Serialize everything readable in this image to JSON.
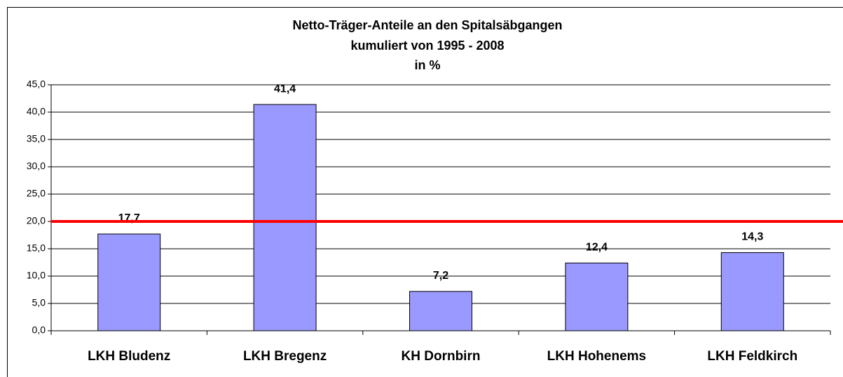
{
  "chart_data": {
    "type": "bar",
    "title": [
      "Netto-Träger-Anteile an den Spitalsäbgangen",
      "kumuliert von 1995 - 2008",
      "in %"
    ],
    "categories": [
      "LKH Bludenz",
      "LKH Bregenz",
      "KH Dornbirn",
      "LKH Hohenems",
      "LKH Feldkirch"
    ],
    "values": [
      17.7,
      41.4,
      7.2,
      12.4,
      14.3
    ],
    "value_labels": [
      "17,7",
      "41,4",
      "7,2",
      "12,4",
      "14,3"
    ],
    "color": "#9999ff",
    "ylim": [
      0,
      45
    ],
    "yticks": [
      {
        "value": 0,
        "label": "0,0"
      },
      {
        "value": 5,
        "label": "5,0"
      },
      {
        "value": 10,
        "label": "10,0"
      },
      {
        "value": 15,
        "label": "15,0"
      },
      {
        "value": 20,
        "label": "20,0"
      },
      {
        "value": 25,
        "label": "25,0"
      },
      {
        "value": 30,
        "label": "30,0"
      },
      {
        "value": 35,
        "label": "35,0"
      },
      {
        "value": 40,
        "label": "40,0"
      },
      {
        "value": 45,
        "label": "45,0"
      }
    ],
    "grid": true,
    "reference_line": {
      "value": 20,
      "color": "#ff0000"
    }
  }
}
